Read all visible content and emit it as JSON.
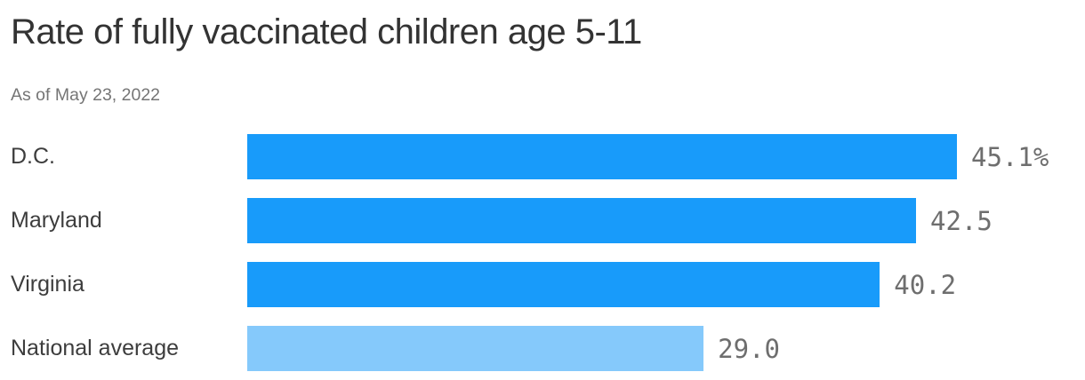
{
  "chart_data": {
    "type": "bar",
    "orientation": "horizontal",
    "title": "Rate of fully vaccinated children age 5-11",
    "subtitle": "As of May 23, 2022",
    "categories": [
      "D.C.",
      "Maryland",
      "Virginia",
      "National average"
    ],
    "values": [
      45.1,
      42.5,
      40.2,
      29.0
    ],
    "value_labels": [
      "45.1%",
      "42.5",
      "40.2",
      "29.0"
    ],
    "xlim": [
      0,
      45.1
    ],
    "grid": false,
    "legend": false,
    "bar_colors": [
      "#189bfa",
      "#189bfa",
      "#189bfa",
      "#85c9fb"
    ],
    "colors": {
      "bar_primary": "#189bfa",
      "bar_muted": "#85c9fb",
      "title": "#333333",
      "subtitle": "#757575",
      "category_label": "#3d3d3d",
      "value_label": "#6e6e6e",
      "background": "#ffffff"
    }
  }
}
